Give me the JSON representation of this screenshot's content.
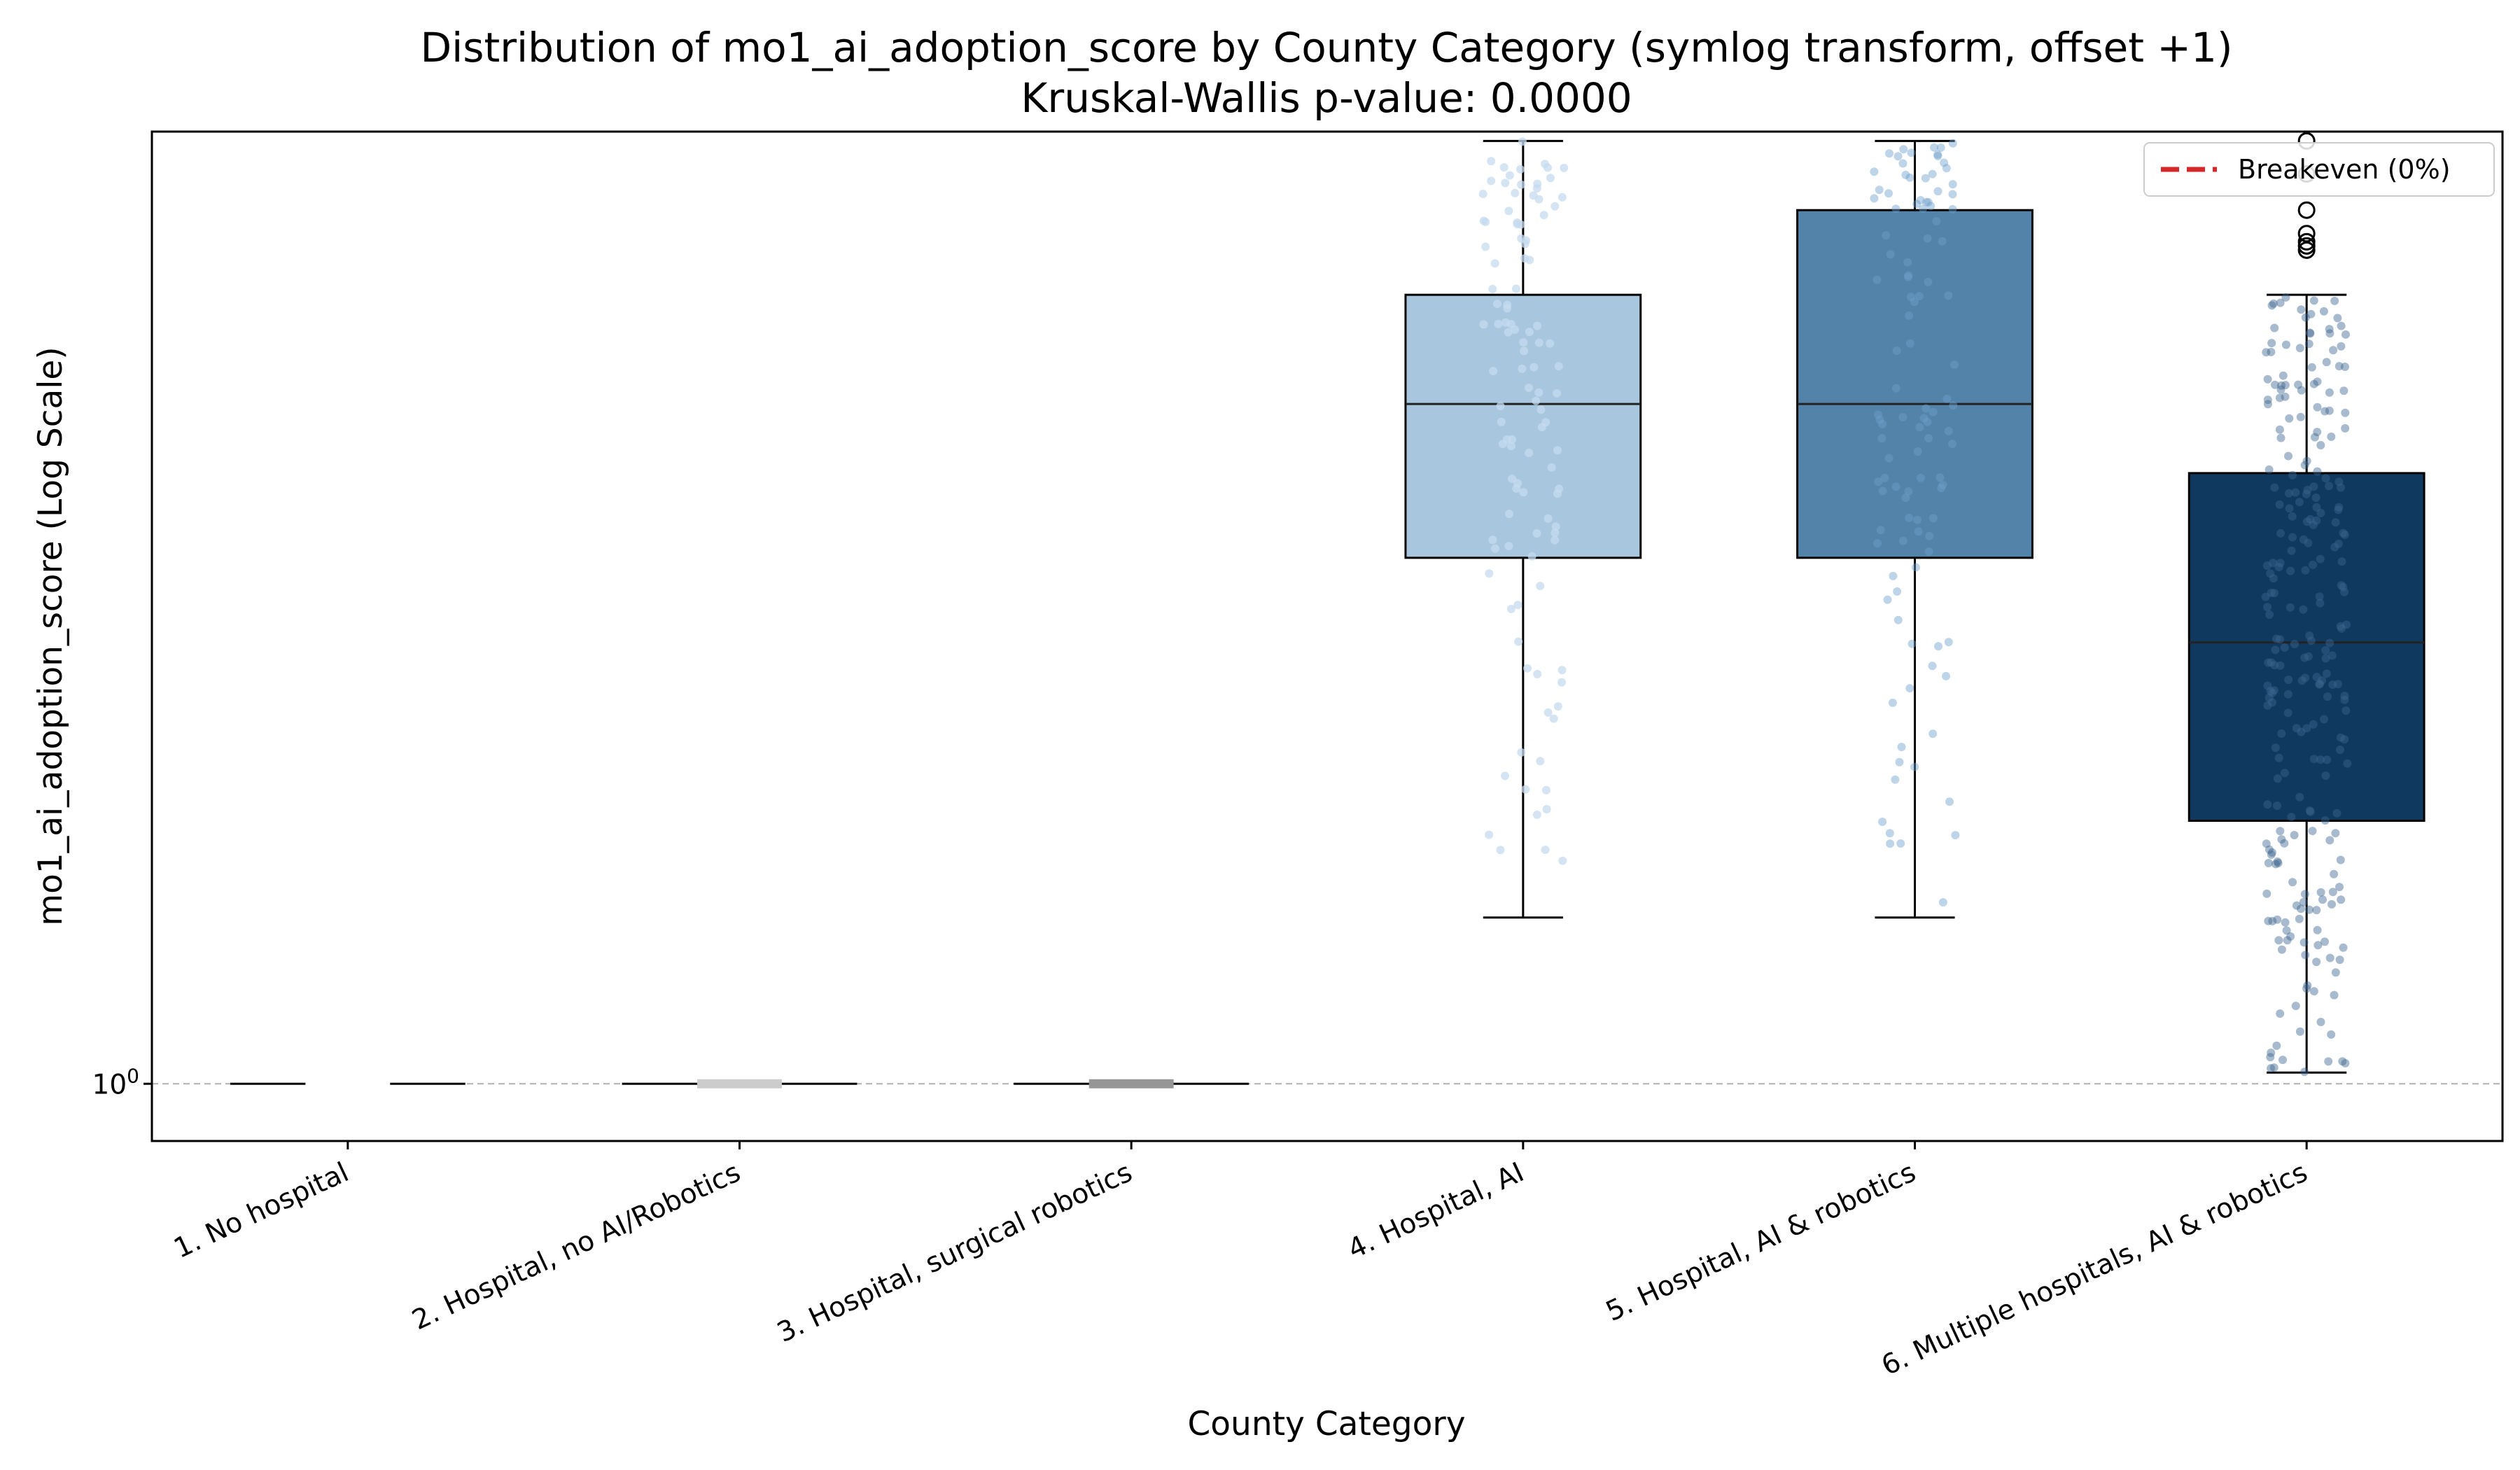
{
  "chart_data": {
    "type": "box",
    "title": "Distribution of mo1_ai_adoption_score by County Category (symlog transform, offset +1)",
    "subtitle": "Kruskal-Wallis p-value: 0.0000",
    "xlabel": "County Category",
    "ylabel": "mo1_ai_adoption_score (Log Scale)",
    "y_scale": "log",
    "y_tick_labels": [
      {
        "value": 1,
        "base": "10",
        "exp": "0"
      }
    ],
    "reference_line": {
      "y": 1,
      "label": "Breakeven (0%)",
      "color": "#d62728",
      "style": "dashed"
    },
    "legend_position": "top-right",
    "grid": false,
    "categories": [
      "1. No hospital",
      "2. Hospital, no AI/Robotics",
      "3. Hospital, surgical robotics",
      "4. Hospital, AI",
      "5. Hospital, AI & robotics",
      "6. Multiple hospitals, AI & robotics"
    ],
    "box_colors": [
      "#ffffff",
      "#cccccc",
      "#969696",
      "#a9c6df",
      "#5383a8",
      "#10395f"
    ],
    "boxes": [
      {
        "whisker_low": 1.0,
        "q1": 1.0,
        "median": 1.0,
        "q3": 1.0,
        "whisker_high": 1.0,
        "outliers": []
      },
      {
        "whisker_low": 1.0,
        "q1": 1.0,
        "median": 1.0,
        "q3": 1.0,
        "whisker_high": 1.0,
        "outliers": []
      },
      {
        "whisker_low": 1.0,
        "q1": 1.0,
        "median": 1.0,
        "q3": 1.0,
        "whisker_high": 1.0,
        "outliers": []
      },
      {
        "whisker_low": 1.55,
        "q1": 4.0,
        "median": 6.0,
        "q3": 8.0,
        "whisker_high": 12.0,
        "outliers": []
      },
      {
        "whisker_low": 1.55,
        "q1": 4.0,
        "median": 6.0,
        "q3": 10.0,
        "whisker_high": 12.0,
        "outliers": []
      },
      {
        "whisker_low": 1.03,
        "q1": 2.0,
        "median": 3.2,
        "q3": 5.0,
        "whisker_high": 8.0,
        "outliers": [
          9.0,
          9.1,
          9.2,
          9.4,
          10.0,
          11.0,
          12.0
        ]
      }
    ],
    "ylim": [
      0.86,
      12.3
    ]
  }
}
